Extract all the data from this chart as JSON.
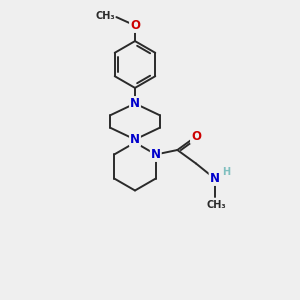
{
  "bg_color": "#efefef",
  "bond_color": "#2a2a2a",
  "N_color": "#0000cc",
  "O_color": "#cc0000",
  "H_color": "#7fbfbf",
  "line_width": 1.4,
  "font_size_atom": 8.5,
  "font_size_small": 7.0,
  "xlim": [
    0,
    10
  ],
  "ylim": [
    0,
    10
  ]
}
